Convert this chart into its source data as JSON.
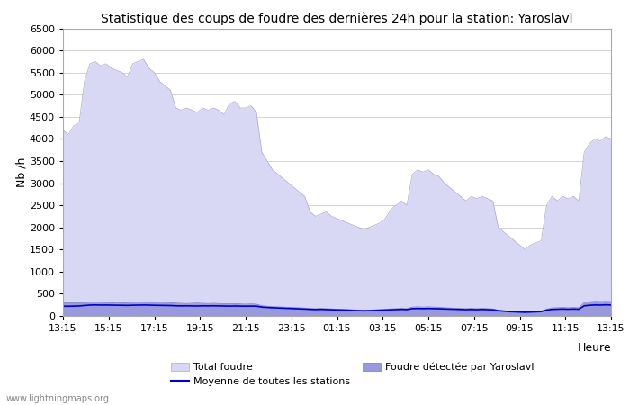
{
  "title": "Statistique des coups de foudre des dernières 24h pour la station: Yaroslavl",
  "xlabel": "Heure",
  "ylabel": "Nb /h",
  "x_labels": [
    "13:15",
    "15:15",
    "17:15",
    "19:15",
    "21:15",
    "23:15",
    "01:15",
    "03:15",
    "05:15",
    "07:15",
    "09:15",
    "11:15",
    "13:15"
  ],
  "ylim": [
    0,
    6500
  ],
  "yticks": [
    0,
    500,
    1000,
    1500,
    2000,
    2500,
    3000,
    3500,
    4000,
    4500,
    5000,
    5500,
    6000,
    6500
  ],
  "total_foudre_color": "#d8d8f5",
  "total_foudre_edge": "#aaaacc",
  "yaroslavl_color": "#9999dd",
  "yaroslavl_edge": "#7777bb",
  "moyenne_color": "#0000cc",
  "background_color": "#ffffff",
  "grid_color": "#cccccc",
  "watermark": "www.lightningmaps.org",
  "legend_items": [
    "Total foudre",
    "Moyenne de toutes les stations",
    "Foudre détectée par Yaroslavl"
  ],
  "total_foudre": [
    4200,
    4100,
    4300,
    4350,
    5300,
    5700,
    5750,
    5650,
    5700,
    5600,
    5550,
    5500,
    5400,
    5700,
    5750,
    5800,
    5600,
    5500,
    5300,
    5200,
    5100,
    4700,
    4650,
    4700,
    4650,
    4600,
    4700,
    4650,
    4700,
    4650,
    4550,
    4800,
    4850,
    4700,
    4700,
    4750,
    4600,
    3700,
    3500,
    3300,
    3200,
    3100,
    3000,
    2900,
    2800,
    2700,
    2350,
    2250,
    2300,
    2350,
    2250,
    2200,
    2150,
    2100,
    2050,
    2000,
    1950,
    2000,
    2050,
    2100,
    2200,
    2400,
    2500,
    2600,
    2500,
    3200,
    3300,
    3250,
    3300,
    3200,
    3150,
    3000,
    2900,
    2800,
    2700,
    2600,
    2700,
    2650,
    2700,
    2650,
    2600,
    2000,
    1900,
    1800,
    1700,
    1600,
    1500,
    1600,
    1650,
    1700,
    2500,
    2700,
    2600,
    2700,
    2650,
    2700,
    2600,
    3700,
    3900,
    4000,
    3950,
    4050,
    4000
  ],
  "yaroslavl": [
    300,
    295,
    300,
    295,
    300,
    305,
    310,
    305,
    300,
    295,
    290,
    295,
    300,
    305,
    310,
    315,
    320,
    315,
    310,
    305,
    300,
    290,
    285,
    280,
    285,
    290,
    285,
    280,
    285,
    280,
    275,
    270,
    275,
    270,
    265,
    270,
    265,
    230,
    220,
    210,
    205,
    200,
    195,
    190,
    185,
    180,
    170,
    165,
    170,
    165,
    160,
    155,
    150,
    145,
    140,
    135,
    130,
    135,
    140,
    145,
    150,
    160,
    165,
    170,
    165,
    200,
    205,
    200,
    205,
    200,
    195,
    185,
    180,
    175,
    170,
    165,
    170,
    165,
    170,
    165,
    160,
    130,
    120,
    110,
    105,
    100,
    95,
    100,
    105,
    110,
    150,
    180,
    185,
    190,
    185,
    190,
    185,
    300,
    320,
    330,
    325,
    330,
    325
  ],
  "moyenne": [
    220,
    218,
    222,
    225,
    235,
    245,
    248,
    245,
    246,
    244,
    242,
    240,
    238,
    242,
    244,
    246,
    244,
    240,
    238,
    236,
    234,
    228,
    226,
    228,
    226,
    224,
    228,
    226,
    228,
    226,
    224,
    222,
    224,
    222,
    220,
    222,
    220,
    200,
    192,
    185,
    180,
    175,
    170,
    165,
    160,
    155,
    148,
    144,
    148,
    144,
    140,
    136,
    132,
    128,
    124,
    120,
    116,
    120,
    124,
    128,
    132,
    140,
    144,
    148,
    144,
    165,
    168,
    165,
    168,
    165,
    162,
    158,
    154,
    150,
    146,
    142,
    146,
    142,
    146,
    142,
    138,
    118,
    108,
    98,
    93,
    88,
    83,
    88,
    93,
    98,
    132,
    148,
    152,
    156,
    152,
    156,
    152,
    228,
    240,
    248,
    244,
    250,
    246
  ]
}
